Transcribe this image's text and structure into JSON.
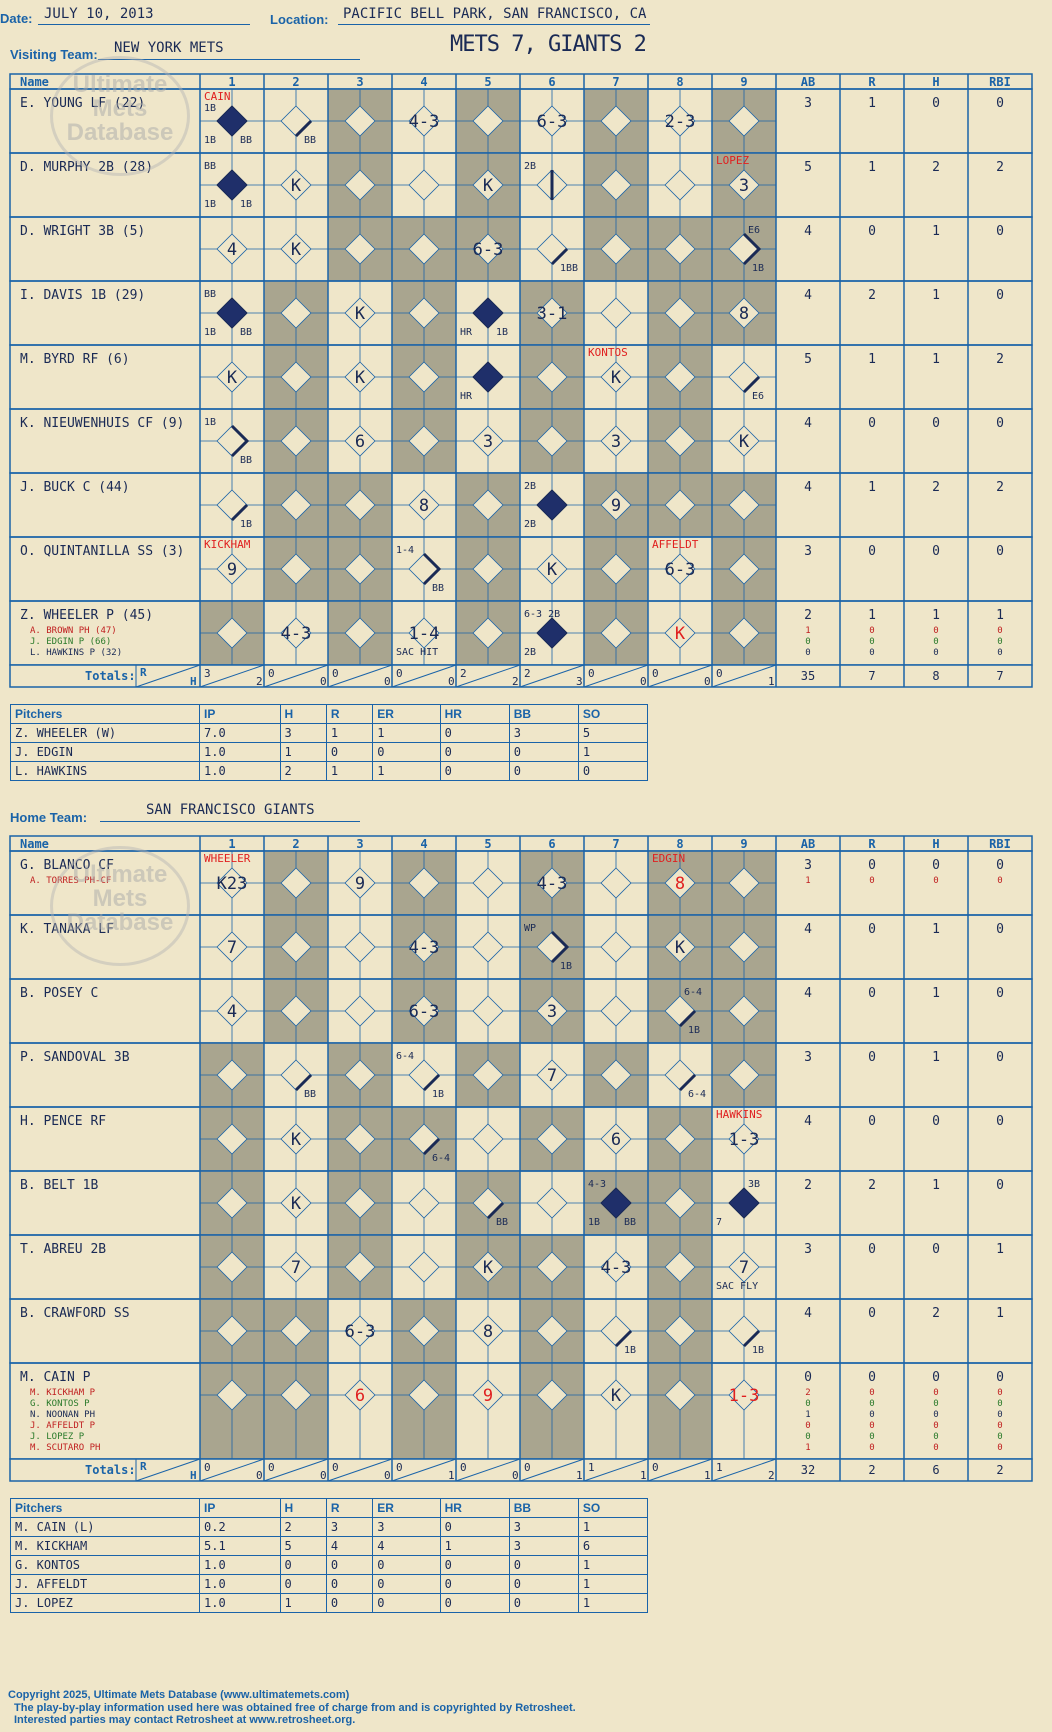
{
  "header": {
    "date_label": "Date:",
    "date": "JULY 10, 2013",
    "location_label": "Location:",
    "location": "PACIFIC BELL PARK, SAN FRANCISCO, CA",
    "visiting_label": "Visiting Team:",
    "visiting_team": "NEW YORK METS",
    "home_label": "Home Team:",
    "home_team": "SAN FRANCISCO GIANTS",
    "score": "METS 7, GIANTS 2"
  },
  "watermark": {
    "line1": "Ultimate",
    "line2": "Mets",
    "line3": "Database",
    "url": "ultimatemets.com"
  },
  "columns": {
    "name": "Name",
    "innings": [
      "1",
      "2",
      "3",
      "4",
      "5",
      "6",
      "7",
      "8",
      "9"
    ],
    "stats": [
      "AB",
      "R",
      "H",
      "RBI"
    ],
    "totals": "Totals:",
    "r": "R",
    "h": "H"
  },
  "colors": {
    "ink": "#1a2a55",
    "grid": "#1a63a8",
    "shade": "#a9a58f",
    "red": "#e02020",
    "green": "#2a7a2a",
    "diamond_fill": "#1f2f6a"
  },
  "visiting": {
    "players": [
      {
        "name": "E. YOUNG LF (22)",
        "subs": [],
        "stats": [
          "3",
          "1",
          "0",
          "0"
        ],
        "sub_stats": [],
        "cells": [
          {
            "inn": 1,
            "scored": true,
            "bases": [
              1,
              2,
              3,
              4
            ],
            "text": "",
            "notes": [
              "1B",
              "BB"
            ],
            "note_top": "1B",
            "pitcher": "CAIN"
          },
          {
            "inn": 2,
            "bases": [
              1
            ],
            "text": "",
            "notes": [
              "",
              "BB"
            ]
          },
          {
            "inn": 4,
            "text": "4-3"
          },
          {
            "inn": 6,
            "text": "6-3"
          },
          {
            "inn": 8,
            "text": "2-3"
          }
        ]
      },
      {
        "name": "D. MURPHY 2B (28)",
        "subs": [],
        "stats": [
          "5",
          "1",
          "2",
          "2"
        ],
        "sub_stats": [],
        "cells": [
          {
            "inn": 1,
            "scored": true,
            "text": "",
            "notes": [
              "1B",
              "1B"
            ],
            "note_top": "BB"
          },
          {
            "inn": 2,
            "text": "K"
          },
          {
            "inn": 5,
            "text": "K"
          },
          {
            "inn": 6,
            "bases": [
              2
            ],
            "text": "",
            "note_top": "2B"
          },
          {
            "inn": 9,
            "text": "3",
            "pitcher": "LOPEZ"
          }
        ]
      },
      {
        "name": "D. WRIGHT 3B (5)",
        "subs": [],
        "stats": [
          "4",
          "0",
          "1",
          "0"
        ],
        "sub_stats": [],
        "cells": [
          {
            "inn": 1,
            "text": "4"
          },
          {
            "inn": 2,
            "text": "K"
          },
          {
            "inn": 5,
            "text": "6-3"
          },
          {
            "inn": 6,
            "bases": [
              1
            ],
            "text": "",
            "notes": [
              "",
              "1BB"
            ]
          },
          {
            "inn": 9,
            "bases": [
              1,
              2
            ],
            "text": "",
            "notes": [
              "",
              "1B"
            ],
            "note_top": "E6"
          }
        ]
      },
      {
        "name": "I. DAVIS 1B (29)",
        "subs": [],
        "stats": [
          "4",
          "2",
          "1",
          "0"
        ],
        "sub_stats": [],
        "cells": [
          {
            "inn": 1,
            "scored": true,
            "text": "",
            "notes": [
              "1B",
              "BB"
            ],
            "note_top": "BB"
          },
          {
            "inn": 3,
            "text": "K"
          },
          {
            "inn": 5,
            "scored": true,
            "text": "",
            "notes": [
              "HR",
              "1B"
            ]
          },
          {
            "inn": 6,
            "text": "3-1"
          },
          {
            "inn": 9,
            "text": "8"
          }
        ]
      },
      {
        "name": "M. BYRD RF (6)",
        "subs": [],
        "stats": [
          "5",
          "1",
          "1",
          "2"
        ],
        "sub_stats": [],
        "cells": [
          {
            "inn": 1,
            "text": "K"
          },
          {
            "inn": 3,
            "text": "K"
          },
          {
            "inn": 5,
            "scored": true,
            "text": "",
            "notes": [
              "HR",
              ""
            ]
          },
          {
            "inn": 7,
            "text": "K",
            "pitcher": "KONTOS"
          },
          {
            "inn": 9,
            "bases": [
              1
            ],
            "text": "",
            "notes": [
              "",
              "E6"
            ]
          }
        ]
      },
      {
        "name": "K. NIEUWENHUIS CF (9)",
        "subs": [],
        "stats": [
          "4",
          "0",
          "0",
          "0"
        ],
        "sub_stats": [],
        "cells": [
          {
            "inn": 1,
            "bases": [
              1,
              2
            ],
            "text": "",
            "notes": [
              "",
              "BB"
            ],
            "note_top": "1B"
          },
          {
            "inn": 3,
            "text": "6"
          },
          {
            "inn": 5,
            "text": "3"
          },
          {
            "inn": 7,
            "text": "3"
          },
          {
            "inn": 9,
            "text": "K"
          }
        ]
      },
      {
        "name": "J. BUCK C (44)",
        "subs": [],
        "stats": [
          "4",
          "1",
          "2",
          "2"
        ],
        "sub_stats": [],
        "cells": [
          {
            "inn": 1,
            "bases": [
              1
            ],
            "text": "",
            "notes": [
              "",
              "1B"
            ]
          },
          {
            "inn": 4,
            "text": "8"
          },
          {
            "inn": 6,
            "scored": true,
            "text": "",
            "notes": [
              "2B",
              ""
            ],
            "note_top": "2B"
          },
          {
            "inn": 7,
            "text": "9"
          }
        ]
      },
      {
        "name": "O. QUINTANILLA SS (3)",
        "subs": [],
        "stats": [
          "3",
          "0",
          "0",
          "0"
        ],
        "sub_stats": [],
        "cells": [
          {
            "inn": 1,
            "text": "9",
            "pitcher": "KICKHAM"
          },
          {
            "inn": 4,
            "bases": [
              1,
              2
            ],
            "text": "",
            "notes": [
              "",
              "BB"
            ],
            "note_top": "1-4"
          },
          {
            "inn": 6,
            "text": "K"
          },
          {
            "inn": 8,
            "text": "6-3",
            "pitcher": "AFFELDT"
          }
        ]
      },
      {
        "name": "Z. WHEELER P (45)",
        "subs": [
          "A. BROWN PH (47)",
          "J. EDGIN P (66)",
          "L. HAWKINS P (32)"
        ],
        "stats": [
          "2",
          "1",
          "1",
          "1"
        ],
        "sub_stats": [
          [
            "1",
            "0",
            "0",
            "0"
          ],
          [
            "0",
            "0",
            "0",
            "0"
          ],
          [
            "0",
            "0",
            "0",
            "0"
          ]
        ],
        "cells": [
          {
            "inn": 2,
            "text": "4-3"
          },
          {
            "inn": 4,
            "text": "1-4",
            "notes": [
              "SAC HIT",
              ""
            ]
          },
          {
            "inn": 6,
            "scored": true,
            "text": "",
            "notes": [
              "2B",
              ""
            ],
            "note_top": "6-3 2B"
          },
          {
            "inn": 8,
            "text": "K",
            "red": true
          }
        ]
      }
    ],
    "totals": [
      [
        "3",
        "2"
      ],
      [
        "0",
        "0"
      ],
      [
        "0",
        "0"
      ],
      [
        "0",
        "0"
      ],
      [
        "2",
        "2"
      ],
      [
        "2",
        "3"
      ],
      [
        "0",
        "0"
      ],
      [
        "0",
        "0"
      ],
      [
        "0",
        "1"
      ]
    ],
    "total_stats": [
      "35",
      "7",
      "8",
      "7"
    ],
    "pitchers_header": [
      "Pitchers",
      "IP",
      "H",
      "R",
      "ER",
      "HR",
      "BB",
      "SO"
    ],
    "pitchers": [
      [
        "Z. WHEELER (W)",
        "7.0",
        "3",
        "1",
        "1",
        "0",
        "3",
        "5"
      ],
      [
        "J. EDGIN",
        "1.0",
        "1",
        "0",
        "0",
        "0",
        "0",
        "1"
      ],
      [
        "L. HAWKINS",
        "1.0",
        "2",
        "1",
        "1",
        "0",
        "0",
        "0"
      ]
    ]
  },
  "home": {
    "players": [
      {
        "name": "G. BLANCO CF",
        "subs": [
          "A. TORRES PH-CF"
        ],
        "stats": [
          "3",
          "0",
          "0",
          "0"
        ],
        "sub_stats": [
          [
            "1",
            "0",
            "0",
            "0"
          ]
        ],
        "cells": [
          {
            "inn": 1,
            "text": "K23",
            "pitcher": "WHEELER"
          },
          {
            "inn": 3,
            "text": "9"
          },
          {
            "inn": 6,
            "text": "4-3"
          },
          {
            "inn": 8,
            "text": "8",
            "red": true,
            "pitcher": "EDGIN"
          }
        ]
      },
      {
        "name": "K. TANAKA LF",
        "subs": [],
        "stats": [
          "4",
          "0",
          "1",
          "0"
        ],
        "sub_stats": [],
        "cells": [
          {
            "inn": 1,
            "text": "7"
          },
          {
            "inn": 4,
            "text": "4-3"
          },
          {
            "inn": 6,
            "bases": [
              1,
              2
            ],
            "text": "",
            "notes": [
              "",
              "1B"
            ],
            "note_top": "WP"
          },
          {
            "inn": 8,
            "text": "K"
          }
        ]
      },
      {
        "name": "B. POSEY C",
        "subs": [],
        "stats": [
          "4",
          "0",
          "1",
          "0"
        ],
        "sub_stats": [],
        "cells": [
          {
            "inn": 1,
            "text": "4"
          },
          {
            "inn": 4,
            "text": "6-3"
          },
          {
            "inn": 6,
            "text": "3"
          },
          {
            "inn": 8,
            "bases": [
              1
            ],
            "text": "",
            "notes": [
              "",
              "1B"
            ],
            "note_top": "6-4"
          }
        ]
      },
      {
        "name": "P. SANDOVAL 3B",
        "subs": [],
        "stats": [
          "3",
          "0",
          "1",
          "0"
        ],
        "sub_stats": [],
        "cells": [
          {
            "inn": 2,
            "bases": [
              1
            ],
            "text": "",
            "notes": [
              "",
              "BB"
            ]
          },
          {
            "inn": 4,
            "bases": [
              1
            ],
            "text": "",
            "notes": [
              "",
              "1B"
            ],
            "note_top": "6-4"
          },
          {
            "inn": 6,
            "text": "7"
          },
          {
            "inn": 8,
            "bases": [
              1
            ],
            "text": "",
            "notes": [
              "",
              "6-4"
            ]
          }
        ]
      },
      {
        "name": "H. PENCE RF",
        "subs": [],
        "stats": [
          "4",
          "0",
          "0",
          "0"
        ],
        "sub_stats": [],
        "cells": [
          {
            "inn": 2,
            "text": "K"
          },
          {
            "inn": 4,
            "bases": [
              1
            ],
            "text": "",
            "notes": [
              "",
              "6-4"
            ]
          },
          {
            "inn": 7,
            "text": "6"
          },
          {
            "inn": 9,
            "text": "1-3",
            "pitcher": "HAWKINS"
          }
        ]
      },
      {
        "name": "B. BELT 1B",
        "subs": [],
        "stats": [
          "2",
          "2",
          "1",
          "0"
        ],
        "sub_stats": [],
        "cells": [
          {
            "inn": 2,
            "text": "K"
          },
          {
            "inn": 5,
            "bases": [
              1
            ],
            "text": "",
            "notes": [
              "",
              "BB"
            ]
          },
          {
            "inn": 7,
            "scored": true,
            "text": "",
            "notes": [
              "1B",
              "BB"
            ],
            "note_top": "4-3"
          },
          {
            "inn": 9,
            "scored": true,
            "text": "",
            "notes": [
              "7",
              ""
            ],
            "note_top": "3B"
          }
        ]
      },
      {
        "name": "T. ABREU 2B",
        "subs": [],
        "stats": [
          "3",
          "0",
          "0",
          "1"
        ],
        "sub_stats": [],
        "cells": [
          {
            "inn": 2,
            "text": "7"
          },
          {
            "inn": 5,
            "text": "K"
          },
          {
            "inn": 7,
            "text": "4-3"
          },
          {
            "inn": 9,
            "text": "7",
            "notes": [
              "SAC FLY",
              ""
            ]
          }
        ]
      },
      {
        "name": "B. CRAWFORD SS",
        "subs": [],
        "stats": [
          "4",
          "0",
          "2",
          "1"
        ],
        "sub_stats": [],
        "cells": [
          {
            "inn": 3,
            "text": "6-3"
          },
          {
            "inn": 5,
            "text": "8"
          },
          {
            "inn": 7,
            "bases": [
              1
            ],
            "text": "",
            "notes": [
              "",
              "1B"
            ]
          },
          {
            "inn": 9,
            "bases": [
              1
            ],
            "text": "",
            "notes": [
              "",
              "1B"
            ]
          }
        ]
      },
      {
        "name": "M. CAIN P",
        "subs": [
          "M. KICKHAM P",
          "G. KONTOS P",
          "N. NOONAN PH",
          "J. AFFELDT P",
          "J. LOPEZ P",
          "M. SCUTARO PH"
        ],
        "stats": [
          "0",
          "0",
          "0",
          "0"
        ],
        "sub_stats": [
          [
            "2",
            "0",
            "0",
            "0"
          ],
          [
            "0",
            "0",
            "0",
            "0"
          ],
          [
            "1",
            "0",
            "0",
            "0"
          ],
          [
            "0",
            "0",
            "0",
            "0"
          ],
          [
            "0",
            "0",
            "0",
            "0"
          ],
          [
            "1",
            "0",
            "0",
            "0"
          ]
        ],
        "cells": [
          {
            "inn": 3,
            "text": "6",
            "red": true
          },
          {
            "inn": 5,
            "text": "9",
            "red": true
          },
          {
            "inn": 7,
            "text": "K"
          },
          {
            "inn": 9,
            "text": "1-3",
            "red": true
          }
        ]
      }
    ],
    "totals": [
      [
        "0",
        "0"
      ],
      [
        "0",
        "0"
      ],
      [
        "0",
        "0"
      ],
      [
        "0",
        "1"
      ],
      [
        "0",
        "0"
      ],
      [
        "0",
        "1"
      ],
      [
        "1",
        "1"
      ],
      [
        "0",
        "1"
      ],
      [
        "1",
        "2"
      ]
    ],
    "total_stats": [
      "32",
      "2",
      "6",
      "2"
    ],
    "pitchers_header": [
      "Pitchers",
      "IP",
      "H",
      "R",
      "ER",
      "HR",
      "BB",
      "SO"
    ],
    "pitchers": [
      [
        "M. CAIN (L)",
        "0.2",
        "2",
        "3",
        "3",
        "0",
        "3",
        "1"
      ],
      [
        "M. KICKHAM",
        "5.1",
        "5",
        "4",
        "4",
        "1",
        "3",
        "6"
      ],
      [
        "G. KONTOS",
        "1.0",
        "0",
        "0",
        "0",
        "0",
        "0",
        "1"
      ],
      [
        "J. AFFELDT",
        "1.0",
        "0",
        "0",
        "0",
        "0",
        "0",
        "1"
      ],
      [
        "J. LOPEZ",
        "1.0",
        "1",
        "0",
        "0",
        "0",
        "0",
        "1"
      ]
    ]
  },
  "footer": {
    "line1": "Copyright 2025, Ultimate Mets Database (www.ultimatemets.com)",
    "line2": "The play-by-play information used here was obtained free of charge from and is copyrighted by Retrosheet.",
    "line3": "Interested parties may contact Retrosheet at www.retrosheet.org."
  }
}
